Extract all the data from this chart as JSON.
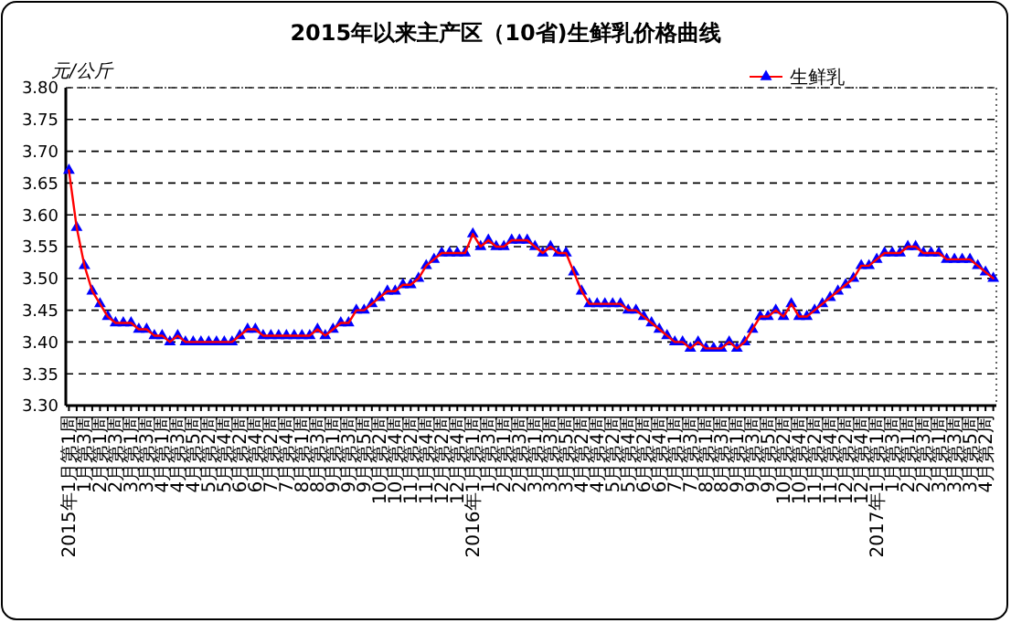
{
  "chart_data": {
    "type": "line",
    "title": "2015年以来主产区（10省)生鲜乳价格曲线",
    "ylabel": "元/公斤",
    "categories": [
      "2015年1月第1周",
      null,
      "1月第3周",
      null,
      "2月第1周",
      null,
      "2月第3周",
      null,
      "3月第1周",
      null,
      "3月第3周",
      null,
      "4月第1周",
      null,
      "4月第3周",
      null,
      "4月第5周",
      null,
      "5月第2周",
      null,
      "5月第4周",
      null,
      "6月第2周",
      null,
      "6月第4周",
      null,
      "7月第2周",
      null,
      "7月第4周",
      null,
      "8月第1周",
      null,
      "8月第3周",
      null,
      "9月第1周",
      null,
      "9月第3周",
      null,
      "9月第5周",
      null,
      "10月第2周",
      null,
      "10月第4周",
      null,
      "11月第2周",
      null,
      "11月第4周",
      null,
      "12月第2周",
      null,
      "12月第4周",
      null,
      "2016年1月第1周",
      null,
      "1月第3周",
      null,
      "2月第1周",
      null,
      "2月第3周",
      null,
      "3月第1周",
      null,
      "3月第3周",
      null,
      "3月第5周",
      null,
      "4月第2周",
      null,
      "4月第4周",
      null,
      "5月第2周",
      null,
      "5月第4周",
      null,
      "6月第2周",
      null,
      "6月第4周",
      null,
      "7月第1周",
      null,
      "7月第3周",
      null,
      "8月第1周",
      null,
      "8月第3周",
      null,
      "9月第1周",
      null,
      "9月第3周",
      null,
      "9月第5周",
      null,
      "10月第2周",
      null,
      "10月第4周",
      null,
      "11月第2周",
      null,
      "11月第4周",
      null,
      "12月第2周",
      null,
      "12月第4周",
      null,
      "2017年1月第1周",
      null,
      "1月第3周",
      null,
      "2月第1周",
      null,
      "2月第3周",
      null,
      "3月第1周",
      null,
      "3月第3周",
      null,
      "3月第5周",
      null,
      "4月第2周",
      null
    ],
    "series": [
      {
        "name": "生鲜乳",
        "color": "#0000ff",
        "values": [
          3.67,
          3.58,
          3.52,
          3.48,
          3.46,
          3.44,
          3.43,
          3.43,
          3.43,
          3.42,
          3.42,
          3.41,
          3.41,
          3.4,
          3.41,
          3.4,
          3.4,
          3.4,
          3.4,
          3.4,
          3.4,
          3.4,
          3.41,
          3.42,
          3.42,
          3.41,
          3.41,
          3.41,
          3.41,
          3.41,
          3.41,
          3.41,
          3.42,
          3.41,
          3.42,
          3.43,
          3.43,
          3.45,
          3.45,
          3.46,
          3.47,
          3.48,
          3.48,
          3.49,
          3.49,
          3.5,
          3.52,
          3.53,
          3.54,
          3.54,
          3.54,
          3.54,
          3.57,
          3.55,
          3.56,
          3.55,
          3.55,
          3.56,
          3.56,
          3.56,
          3.55,
          3.54,
          3.55,
          3.54,
          3.54,
          3.51,
          3.48,
          3.46,
          3.46,
          3.46,
          3.46,
          3.46,
          3.45,
          3.45,
          3.44,
          3.43,
          3.42,
          3.41,
          3.4,
          3.4,
          3.39,
          3.4,
          3.39,
          3.39,
          3.39,
          3.4,
          3.39,
          3.4,
          3.42,
          3.44,
          3.44,
          3.45,
          3.44,
          3.46,
          3.44,
          3.44,
          3.45,
          3.46,
          3.47,
          3.48,
          3.49,
          3.5,
          3.52,
          3.52,
          3.53,
          3.54,
          3.54,
          3.54,
          3.55,
          3.55,
          3.54,
          3.54,
          3.54,
          3.53,
          3.53,
          3.53,
          3.53,
          3.52,
          3.51,
          3.5
        ]
      }
    ],
    "ylim": [
      3.3,
      3.8
    ],
    "yticks": [
      {
        "value": 3.3,
        "label": "3.30"
      },
      {
        "value": 3.35,
        "label": "3.35"
      },
      {
        "value": 3.4,
        "label": "3.40"
      },
      {
        "value": 3.45,
        "label": "3.45"
      },
      {
        "value": 3.5,
        "label": "3.50"
      },
      {
        "value": 3.55,
        "label": "3.55"
      },
      {
        "value": 3.6,
        "label": "3.60"
      },
      {
        "value": 3.65,
        "label": "3.65"
      },
      {
        "value": 3.7,
        "label": "3.70"
      },
      {
        "value": 3.75,
        "label": "3.75"
      },
      {
        "value": 3.8,
        "label": "3.80"
      }
    ],
    "grid": "y",
    "legend": "top right",
    "marker": "triangle",
    "line_style": "solid"
  }
}
